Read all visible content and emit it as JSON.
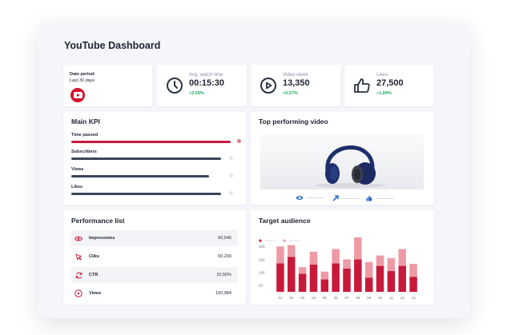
{
  "dashboard": {
    "title": "YouTube Dashboard"
  },
  "date_card": {
    "label": "Date period:",
    "value": "Last 30 days"
  },
  "stats": [
    {
      "label": "Avg. watch time",
      "value": "00:15:30",
      "change": "+2.59%",
      "icon": "clock-icon"
    },
    {
      "label": "Video views",
      "value": "13,350",
      "change": "+0.27%",
      "icon": "play-circle-icon"
    },
    {
      "label": "Likes",
      "value": "27,500",
      "change": "+1.89%",
      "icon": "thumbs-up-icon"
    }
  ],
  "main_kpi": {
    "title": "Main KPI",
    "items": [
      {
        "label": "Time passed",
        "progress": 0.97,
        "color": "#c8193a"
      },
      {
        "label": "Subscribers",
        "progress": 0.91,
        "color": "#3b4456"
      },
      {
        "label": "Views",
        "progress": 0.84,
        "color": "#3b4456"
      },
      {
        "label": "Likes",
        "progress": 0.91,
        "color": "#3b4456"
      }
    ]
  },
  "top_video": {
    "title": "Top performing video",
    "controls": [
      "eye-icon",
      "share-icon",
      "thumbs-up-icon"
    ]
  },
  "performance": {
    "title": "Performance list",
    "rows": [
      {
        "label": "Impressions",
        "value": "90,545",
        "icon": "eye-icon"
      },
      {
        "label": "Cliks",
        "value": "60,200",
        "icon": "cursor-icon"
      },
      {
        "label": "CTR",
        "value": "10,50%",
        "icon": "refresh-icon"
      },
      {
        "label": "Views",
        "value": "100,984",
        "icon": "play-circle-icon"
      }
    ]
  },
  "audience": {
    "title": "Target audience"
  },
  "colors": {
    "accent": "#c8193a",
    "accent_light": "#ee9aa4",
    "dark": "#3b4456",
    "positive": "#1faa5b"
  },
  "chart_data": {
    "type": "bar",
    "stacked": true,
    "categories": [
      "01",
      "02",
      "03",
      "04",
      "05",
      "06",
      "07",
      "08",
      "09",
      "10",
      "11",
      "12",
      "13"
    ],
    "series": [
      {
        "values": [
          110,
          135,
          70,
          105,
          48,
          110,
          90,
          125,
          55,
          100,
          80,
          100,
          58
        ]
      },
      {
        "values": [
          65,
          45,
          25,
          50,
          30,
          55,
          35,
          85,
          60,
          40,
          50,
          65,
          50
        ]
      }
    ],
    "y_ticks": [
      50,
      100,
      150,
      200
    ],
    "ylim": [
      25,
      210
    ],
    "legend_position": "top-left",
    "grid": false
  }
}
